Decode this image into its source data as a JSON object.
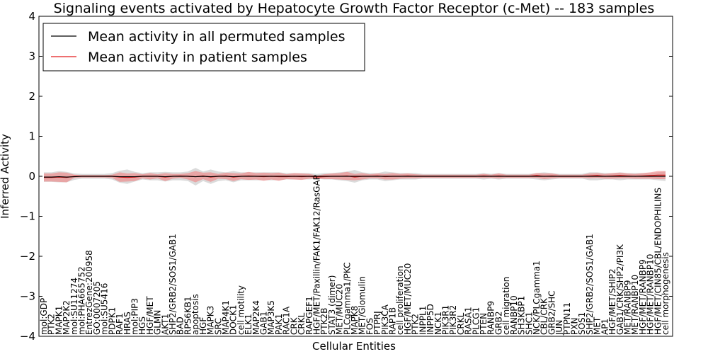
{
  "chart_data": {
    "type": "line",
    "title": "Signaling events activated by Hepatocyte Growth Factor Receptor (c-Met) -- 183 samples",
    "xlabel": "Cellular Entities",
    "ylabel": "Inferred Activity",
    "ylim": [
      -4,
      4
    ],
    "yticks": [
      "4",
      "3",
      "2",
      "1",
      "0",
      "−1",
      "−2",
      "−3",
      "−4"
    ],
    "legend_position": "top-left",
    "series": [
      {
        "name": "Mean activity in all permuted samples",
        "color": "#000000",
        "band_color": "#b0b0b0"
      },
      {
        "name": "Mean activity in patient samples",
        "color": "#e31a1c",
        "band_color": "#f08080"
      }
    ],
    "entities": [
      "mol:GDP",
      "PTK2",
      "MAPK1",
      "MAP2K2",
      "mol:SU11274",
      "mol:PHA665752",
      "EntrezGene:200958",
      "GO:0007205",
      "mol:SU5416",
      "PDPK1",
      "RAF1",
      "HRAS",
      "mol:PIP3",
      "HGS",
      "HGF/MET",
      "GLMN",
      "AKT1",
      "SHP2/GRB2/SOS1/GAB1",
      "BAD",
      "RPS6KB1",
      "apoptosis",
      "HGF",
      "MAPK3",
      "SRC",
      "MAP4K1",
      "DOCK1",
      "cell motility",
      "ELK1",
      "MAP2K4",
      "GAB1",
      "MAP3K5",
      "PAK1",
      "RAC1A",
      "CRK",
      "CRKL",
      "RAPGEF1",
      "HGF/MET/Paxillin/FAK1/FAK12/RasGAP",
      "PTK2B",
      "STAT3 (dimer)",
      "MET/MUC20",
      "PLCgamma1/PKC",
      "MAPK8",
      "MET/Glomulin",
      "FOS",
      "PTPRJ",
      "PIK3CA",
      "RAP1B",
      "cell proliferation",
      "HGF/MET/MUC20",
      "PTK2",
      "INPPL1",
      "INPP5D",
      "NCK1",
      "PIK3R1",
      "PIK3R2",
      "CRKL",
      "RASA1",
      "PLCG1",
      "PTEN",
      "RANBP9",
      "GRB2",
      "cell migration",
      "RANBP10",
      "SH3KBP1",
      "SHC1",
      "NCK/PLCgamma1",
      "CBL/CRK",
      "GRB2/SHC",
      "JUN",
      "PTPN11",
      "PXN",
      "SOS1",
      "SHP2/GRB2/SOS1/GAB1",
      "MET",
      "AP1",
      "HGF/MET/SHIP2",
      "GAB1/CRK/SHP2/PI3K",
      "MET/RANBP9",
      "MET/RANBP10",
      "HGF/MET/RANBP9",
      "HGF/MET/RANBP10",
      "HGF/MET/CIN85/CBL/ENDOPHILINS",
      "cell morphogenesis"
    ],
    "permuted_mean": [
      -0.02,
      -0.02,
      -0.01,
      -0.02,
      -0.01,
      0.0,
      0.0,
      0.0,
      0.0,
      0.0,
      -0.01,
      -0.01,
      -0.01,
      0.0,
      0.0,
      0.0,
      -0.01,
      0.0,
      0.0,
      0.0,
      -0.01,
      0.0,
      -0.01,
      0.0,
      0.0,
      -0.01,
      0.0,
      0.0,
      0.0,
      0.0,
      0.0,
      0.0,
      0.0,
      0.0,
      0.0,
      0.0,
      0.0,
      0.0,
      0.0,
      0.0,
      0.0,
      0.0,
      0.0,
      0.0,
      0.0,
      0.0,
      0.0,
      0.0,
      0.0,
      0.0,
      0.0,
      0.0,
      0.0,
      0.0,
      0.0,
      0.0,
      0.0,
      0.0,
      0.0,
      0.0,
      0.0,
      0.0,
      0.0,
      0.0,
      0.0,
      0.0,
      0.0,
      0.0,
      0.0,
      0.0,
      0.0,
      0.0,
      0.0,
      0.0,
      0.0,
      0.0,
      0.0,
      0.0,
      0.0,
      0.0,
      0.0,
      0.0,
      0.0
    ],
    "permuted_spread": [
      0.12,
      0.12,
      0.14,
      0.13,
      0.08,
      0.06,
      0.06,
      0.06,
      0.06,
      0.08,
      0.15,
      0.18,
      0.12,
      0.08,
      0.1,
      0.1,
      0.12,
      0.1,
      0.1,
      0.12,
      0.22,
      0.12,
      0.18,
      0.12,
      0.1,
      0.14,
      0.1,
      0.1,
      0.1,
      0.1,
      0.1,
      0.1,
      0.08,
      0.08,
      0.08,
      0.08,
      0.06,
      0.08,
      0.08,
      0.1,
      0.12,
      0.16,
      0.1,
      0.08,
      0.08,
      0.12,
      0.1,
      0.08,
      0.08,
      0.08,
      0.06,
      0.06,
      0.06,
      0.06,
      0.06,
      0.06,
      0.06,
      0.06,
      0.08,
      0.06,
      0.08,
      0.06,
      0.06,
      0.06,
      0.06,
      0.08,
      0.1,
      0.08,
      0.06,
      0.06,
      0.06,
      0.06,
      0.1,
      0.1,
      0.08,
      0.08,
      0.1,
      0.08,
      0.08,
      0.08,
      0.08,
      0.1,
      0.12
    ],
    "patient_mean": [
      -0.03,
      -0.03,
      -0.02,
      -0.03,
      0.0,
      0.0,
      0.0,
      0.0,
      0.0,
      0.0,
      -0.02,
      -0.03,
      -0.02,
      0.0,
      0.0,
      0.0,
      -0.02,
      0.0,
      0.01,
      0.0,
      -0.01,
      0.01,
      -0.02,
      0.0,
      0.01,
      -0.02,
      0.0,
      0.01,
      0.0,
      -0.01,
      0.0,
      -0.01,
      -0.01,
      0.0,
      -0.01,
      0.0,
      -0.02,
      -0.01,
      0.0,
      0.0,
      0.01,
      -0.02,
      0.0,
      0.0,
      0.01,
      -0.01,
      0.0,
      0.0,
      0.01,
      0.0,
      0.0,
      0.0,
      0.0,
      0.0,
      0.0,
      0.0,
      0.0,
      0.0,
      0.01,
      0.0,
      0.01,
      0.0,
      0.0,
      0.0,
      0.0,
      0.02,
      0.0,
      0.01,
      0.0,
      0.0,
      0.0,
      0.0,
      0.01,
      0.02,
      0.0,
      0.01,
      0.02,
      0.01,
      0.0,
      0.01,
      0.02,
      0.03,
      0.03
    ],
    "patient_spread": [
      0.1,
      0.1,
      0.12,
      0.12,
      0.04,
      0.03,
      0.03,
      0.03,
      0.03,
      0.04,
      0.12,
      0.1,
      0.1,
      0.05,
      0.08,
      0.05,
      0.1,
      0.06,
      0.05,
      0.08,
      0.14,
      0.08,
      0.12,
      0.06,
      0.08,
      0.1,
      0.07,
      0.1,
      0.08,
      0.1,
      0.08,
      0.1,
      0.06,
      0.08,
      0.08,
      0.06,
      0.04,
      0.06,
      0.07,
      0.08,
      0.1,
      0.08,
      0.08,
      0.05,
      0.06,
      0.07,
      0.08,
      0.06,
      0.06,
      0.05,
      0.04,
      0.04,
      0.04,
      0.04,
      0.04,
      0.04,
      0.04,
      0.04,
      0.05,
      0.04,
      0.06,
      0.04,
      0.04,
      0.04,
      0.04,
      0.06,
      0.07,
      0.06,
      0.04,
      0.04,
      0.04,
      0.04,
      0.06,
      0.06,
      0.06,
      0.07,
      0.07,
      0.06,
      0.06,
      0.07,
      0.08,
      0.1,
      0.1
    ]
  }
}
